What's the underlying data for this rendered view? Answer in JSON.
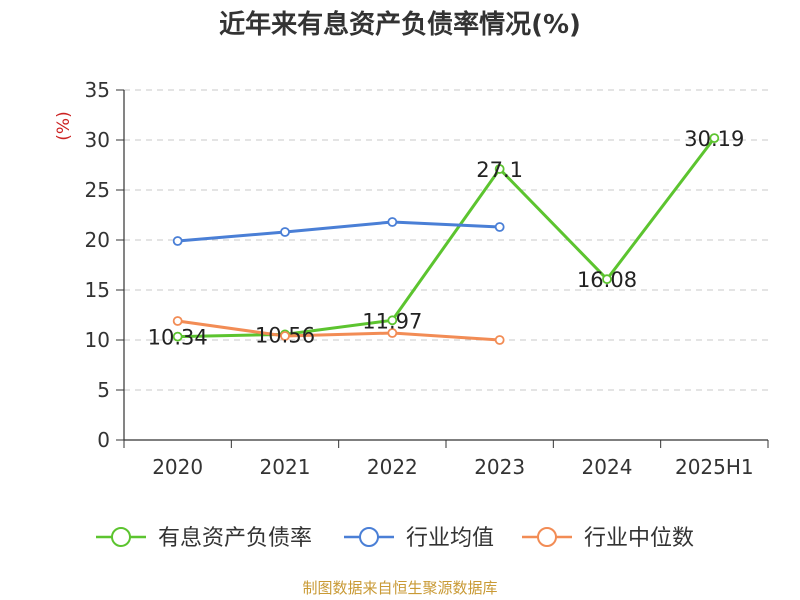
{
  "chart_data": {
    "type": "line",
    "title": "近年来有息资产负债率情况(%)",
    "ylabel": "(%)",
    "categories": [
      "2020",
      "2021",
      "2022",
      "2023",
      "2024",
      "2025H1"
    ],
    "ylim": [
      0,
      35
    ],
    "yticks": [
      0,
      5,
      10,
      15,
      20,
      25,
      30,
      35
    ],
    "grid": true,
    "legend_position": "bottom",
    "series": [
      {
        "name": "有息资产负债率",
        "color": "#5cc42f",
        "values": [
          10.34,
          10.56,
          11.97,
          27.1,
          16.08,
          30.19
        ],
        "labels": [
          "10.34",
          "10.56",
          "11.97",
          "27.1",
          "16.08",
          "30.19"
        ]
      },
      {
        "name": "行业均值",
        "color": "#4a7fd6",
        "values": [
          19.9,
          20.8,
          21.8,
          21.3,
          null,
          null
        ]
      },
      {
        "name": "行业中位数",
        "color": "#f28c55",
        "values": [
          11.9,
          10.4,
          10.7,
          10.0,
          null,
          null
        ]
      }
    ]
  },
  "footer": {
    "source": "制图数据来自恒生聚源数据库"
  }
}
